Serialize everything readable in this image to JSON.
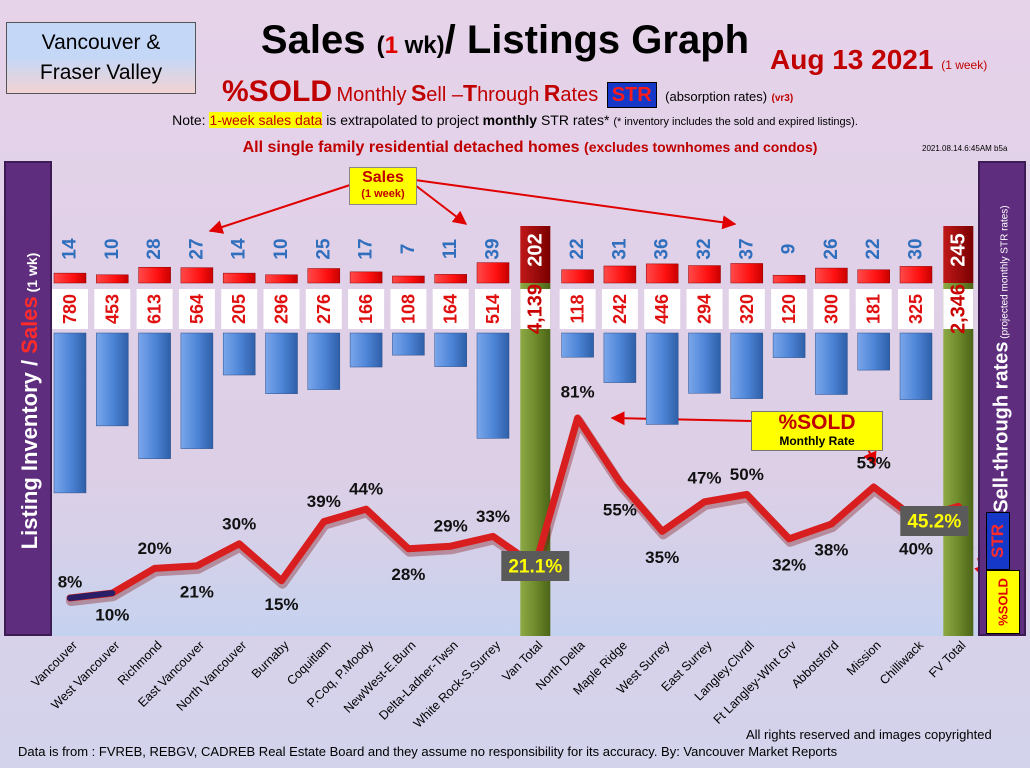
{
  "header": {
    "region_line1": "Vancouver &",
    "region_line2": "Fraser Valley",
    "title_part1": "Sales",
    "title_paren_open": "(",
    "title_one": "1",
    "title_wk": " wk)",
    "title_part2": "/ Listings Graph",
    "date": "Aug 13  2021",
    "date_note": "(1 week)",
    "subtitle_sold": "%SOLD",
    "subtitle_monthly": "Monthly",
    "subtitle_s": "S",
    "subtitle_ell": "ell –",
    "subtitle_t": "T",
    "subtitle_hrough": "hrough",
    "subtitle_r": "R",
    "subtitle_ates": "ates",
    "str_badge": "STR",
    "subtitle_note": "(absorption rates)",
    "subtitle_version": "(vr3)",
    "note_prefix": "Note:",
    "note_highlight": "1-week sales data",
    "note_mid": "is extrapolated to project",
    "note_bold": "monthly",
    "note_rest": "STR rates*",
    "note_small": "(* inventory includes the sold and expired listings).",
    "scope_bold": "All single family residential detached homes",
    "scope_paren": "(excludes townhomes and condos)",
    "timestamp": "2021.08.14.6:45AM b5a"
  },
  "left_axis": {
    "part1": "Listing Inventory",
    "slash": " / ",
    "part2": "Sales",
    "part3": " (1 wk)"
  },
  "right_axis": {
    "label": "Sell-through rates",
    "label_small": " (projected monthly STR rates)",
    "str_tag": "STR",
    "sold_tag": "%SOLD"
  },
  "callouts": {
    "sales_line1": "Sales",
    "sales_line2": "(1 week)",
    "sold_line1": "%SOLD",
    "sold_line2": "Monthly Rate"
  },
  "footer": {
    "rights": "All rights reserved and  images copyrighted",
    "source": "Data is from : FVREB, REBGV, CADREB Real Estate Board and they assume no responsibility for its accuracy. By: Vancouver Market Reports"
  },
  "colors": {
    "sales_bar": "#ff1a1a",
    "inventory_bar": "#4f86d8",
    "total_bar": "#6e8a2c",
    "total_sales_bar": "#9a0000",
    "str_line": "#d81e1e",
    "panel": "#5e2d7e"
  },
  "chart_data": {
    "type": "bar",
    "categories": [
      "Vancouver",
      "West Vancouver",
      "Richmond",
      "East Vancouver",
      "North Vancouver",
      "Burnaby",
      "Coquitlam",
      "P.Coq, P.Moody",
      "NewWest-E.Burn",
      "Delta-Ladner-Twsn",
      "White Rock-S.Surrey",
      "Van Total",
      "North Delta",
      "Maple Ridge",
      "West Surrey",
      "East Surrey",
      "Langley,Clvrdl",
      "Ft Langley-Wlnt Grv",
      "Abbotsford",
      "Mission",
      "Chilliwack",
      "FV Total"
    ],
    "series": [
      {
        "name": "Sales",
        "values": [
          14,
          10,
          28,
          27,
          14,
          10,
          25,
          17,
          7,
          11,
          39,
          202,
          22,
          31,
          36,
          32,
          37,
          9,
          26,
          22,
          30,
          245
        ]
      },
      {
        "name": "Listing Inventory",
        "values": [
          780,
          453,
          613,
          564,
          205,
          296,
          276,
          166,
          108,
          164,
          514,
          4139,
          118,
          242,
          446,
          294,
          320,
          120,
          300,
          181,
          325,
          2346
        ]
      },
      {
        "name": "%SOLD",
        "values": [
          8,
          10,
          20,
          21,
          30,
          15,
          39,
          44,
          28,
          29,
          33,
          21.1,
          81,
          55,
          35,
          47,
          50,
          32,
          38,
          53,
          40,
          45.2
        ]
      }
    ],
    "sales_labels": [
      "14",
      "10",
      "28",
      "27",
      "14",
      "10",
      "25",
      "17",
      "7",
      "11",
      "39",
      "202",
      "22",
      "31",
      "36",
      "32",
      "37",
      "9",
      "26",
      "22",
      "30",
      "245"
    ],
    "inventory_labels": [
      "780",
      "453",
      "613",
      "564",
      "205",
      "296",
      "276",
      "166",
      "108",
      "164",
      "514",
      "4,139",
      "118",
      "242",
      "446",
      "294",
      "320",
      "120",
      "300",
      "181",
      "325",
      "2,346"
    ],
    "str_labels": [
      "8%",
      "10%",
      "20%",
      "21%",
      "30%",
      "15%",
      "39%",
      "44%",
      "28%",
      "29%",
      "33%",
      "21.1%",
      "81%",
      "55%",
      "35%",
      "47%",
      "50%",
      "32%",
      "38%",
      "53%",
      "40%",
      "45.2%"
    ],
    "total_indices": [
      11,
      21
    ],
    "grid": false
  }
}
